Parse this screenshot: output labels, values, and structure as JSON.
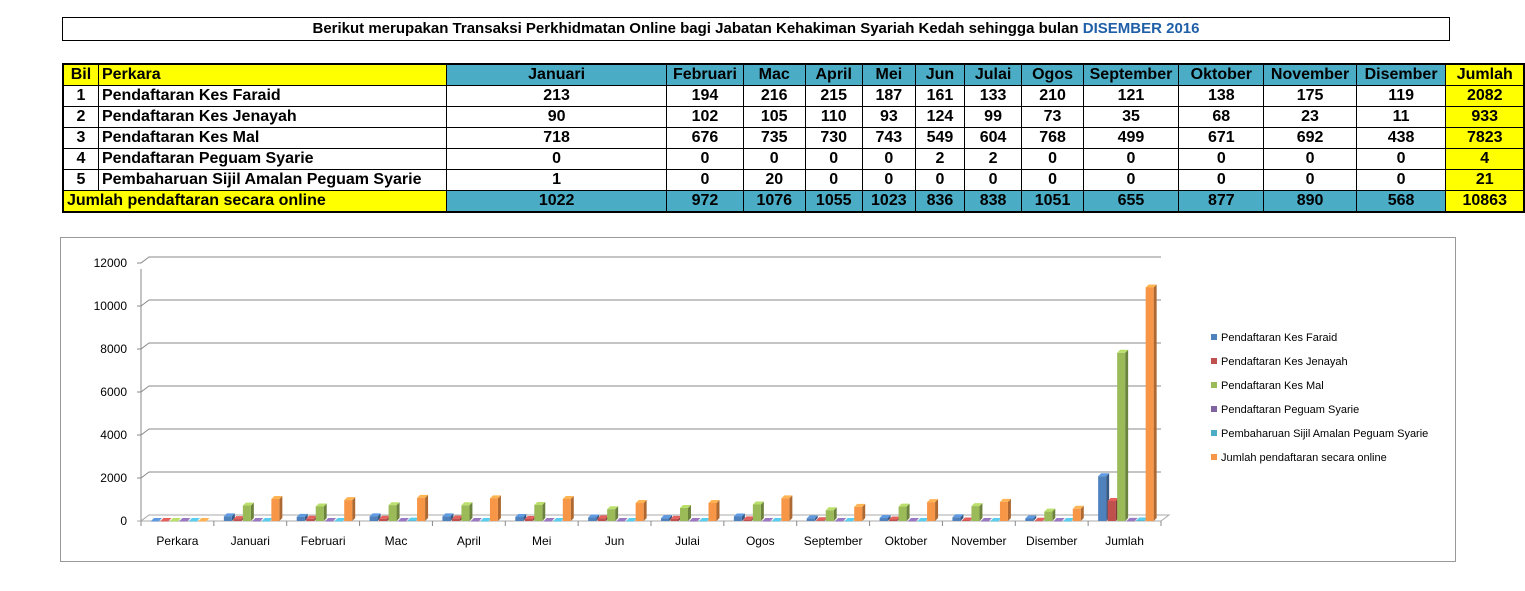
{
  "title": {
    "text": "Berikut merupakan Transaksi Perkhidmatan Online bagi Jabatan Kehakiman Syariah Kedah sehingga bulan",
    "month": "DISEMBER",
    "year": "2016"
  },
  "table": {
    "headers": [
      "Bil",
      "Perkara",
      "Januari",
      "Februari",
      "Mac",
      "April",
      "Mei",
      "Jun",
      "Julai",
      "Ogos",
      "September",
      "Oktober",
      "November",
      "Disember",
      "Jumlah"
    ],
    "rows": [
      [
        "1",
        "Pendaftaran Kes Faraid",
        "213",
        "194",
        "216",
        "215",
        "187",
        "161",
        "133",
        "210",
        "121",
        "138",
        "175",
        "119",
        "2082"
      ],
      [
        "2",
        "Pendaftaran Kes Jenayah",
        "90",
        "102",
        "105",
        "110",
        "93",
        "124",
        "99",
        "73",
        "35",
        "68",
        "23",
        "11",
        "933"
      ],
      [
        "3",
        "Pendaftaran Kes Mal",
        "718",
        "676",
        "735",
        "730",
        "743",
        "549",
        "604",
        "768",
        "499",
        "671",
        "692",
        "438",
        "7823"
      ],
      [
        "4",
        "Pendaftaran Peguam Syarie",
        "0",
        "0",
        "0",
        "0",
        "0",
        "2",
        "2",
        "0",
        "0",
        "0",
        "0",
        "0",
        "4"
      ],
      [
        "5",
        "Pembaharuan Sijil Amalan Peguam Syarie",
        "1",
        "0",
        "20",
        "0",
        "0",
        "0",
        "0",
        "0",
        "0",
        "0",
        "0",
        "0",
        "21"
      ]
    ],
    "total": [
      "Jumlah pendaftaran secara online",
      "1022",
      "972",
      "1076",
      "1055",
      "1023",
      "836",
      "838",
      "1051",
      "655",
      "877",
      "890",
      "568",
      "10863"
    ]
  },
  "chart_data": {
    "type": "bar",
    "title": "",
    "xlabel": "",
    "ylabel": "",
    "ylim": [
      0,
      12000
    ],
    "yticks": [
      "0",
      "2000",
      "4000",
      "6000",
      "8000",
      "10000",
      "12000"
    ],
    "legend_position": "right",
    "categories": [
      "Perkara",
      "Januari",
      "Februari",
      "Mac",
      "April",
      "Mei",
      "Jun",
      "Julai",
      "Ogos",
      "September",
      "Oktober",
      "November",
      "Disember",
      "Jumlah"
    ],
    "series": [
      {
        "name": "Pendaftaran Kes Faraid",
        "color": "#4f81bd",
        "values": [
          0,
          213,
          194,
          216,
          215,
          187,
          161,
          133,
          210,
          121,
          138,
          175,
          119,
          2082
        ]
      },
      {
        "name": "Pendaftaran Kes Jenayah",
        "color": "#c0504d",
        "values": [
          0,
          90,
          102,
          105,
          110,
          93,
          124,
          99,
          73,
          35,
          68,
          23,
          11,
          933
        ]
      },
      {
        "name": "Pendaftaran Kes Mal",
        "color": "#9bbb59",
        "values": [
          0,
          718,
          676,
          735,
          730,
          743,
          549,
          604,
          768,
          499,
          671,
          692,
          438,
          7823
        ]
      },
      {
        "name": "Pendaftaran Peguam Syarie",
        "color": "#8064a2",
        "values": [
          0,
          0,
          0,
          0,
          0,
          0,
          2,
          2,
          0,
          0,
          0,
          0,
          0,
          4
        ]
      },
      {
        "name": "Pembaharuan Sijil Amalan Peguam Syarie",
        "color": "#4bacc6",
        "values": [
          0,
          1,
          0,
          20,
          0,
          0,
          0,
          0,
          0,
          0,
          0,
          0,
          0,
          21
        ]
      },
      {
        "name": "Jumlah pendaftaran secara online",
        "color": "#f79646",
        "values": [
          0,
          1022,
          972,
          1076,
          1055,
          1023,
          836,
          838,
          1051,
          655,
          877,
          890,
          568,
          10863
        ]
      }
    ]
  }
}
